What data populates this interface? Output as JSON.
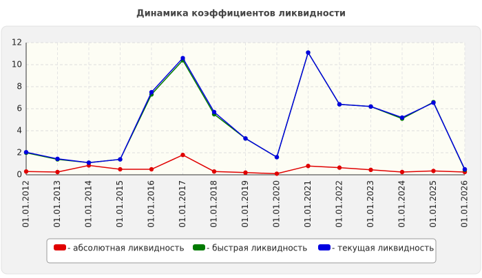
{
  "chart_data": {
    "type": "line",
    "title": "Динамика коэффициентов ликвидности",
    "categories": [
      "01.01.2012",
      "01.01.2013",
      "01.01.2014",
      "01.01.2015",
      "01.01.2016",
      "01.01.2017",
      "01.01.2018",
      "01.01.2019",
      "01.01.2020",
      "01.01.2021",
      "01.01.2022",
      "01.01.2023",
      "01.01.2024",
      "01.01.2025",
      "01.01.2026"
    ],
    "series": [
      {
        "name": "- абсолютная ликвидность",
        "color": "#e00000",
        "values": [
          0.3,
          0.25,
          0.85,
          0.5,
          0.5,
          1.8,
          0.3,
          0.2,
          0.1,
          0.8,
          0.65,
          0.45,
          0.25,
          0.35,
          0.25
        ]
      },
      {
        "name": "- быстрая ликвидность",
        "color": "#007a00",
        "values": [
          2.0,
          1.4,
          1.1,
          1.4,
          7.3,
          10.4,
          5.5,
          3.3,
          1.6,
          11.1,
          6.4,
          6.2,
          5.1,
          6.6,
          0.45
        ]
      },
      {
        "name": "- текущая ликвидность",
        "color": "#0000e0",
        "values": [
          2.05,
          1.45,
          1.1,
          1.4,
          7.5,
          10.6,
          5.7,
          3.3,
          1.6,
          11.1,
          6.4,
          6.2,
          5.2,
          6.55,
          0.5
        ]
      }
    ],
    "ylim": [
      0,
      12
    ],
    "yticks": [
      0,
      2,
      4,
      6,
      8,
      10,
      12
    ],
    "grid": true
  }
}
